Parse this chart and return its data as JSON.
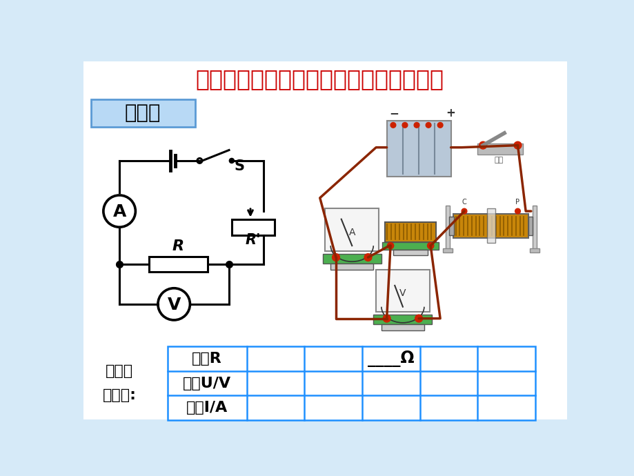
{
  "title": "电阻一定，研究电流与电压的定量关系。",
  "title_color": "#CC0000",
  "title_fontsize": 24,
  "slide_bg": "#D6EAF8",
  "white_area_color": "#FFFFFF",
  "label_fangfa": "方法二",
  "label_jilu_1": "记录实",
  "label_jilu_2": "验数据:",
  "row_labels": [
    "电阻R",
    "电压U/V",
    "电流I/A"
  ],
  "circuit_color": "#000000",
  "table_border_color": "#1E90FF",
  "fangfa_bg": "#B8D9F5",
  "fangfa_border": "#5B9BD5",
  "wire_color": "#8B2500"
}
